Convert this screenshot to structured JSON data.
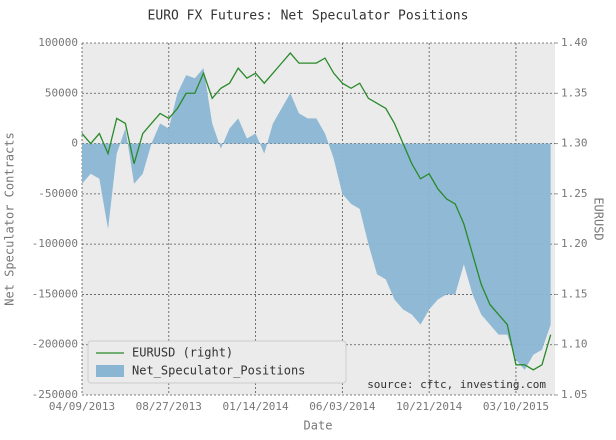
{
  "chart_data": {
    "type": "area-line",
    "title": "EURO FX Futures: Net Speculator Positions",
    "x_label": "Date",
    "y_label": "Net Speculator Contracts",
    "y2_label": "EURUSD",
    "annotation": "source: cftc, investing.com",
    "x": [
      "04/09/2013",
      "04/23/2013",
      "05/07/2013",
      "05/21/2013",
      "06/04/2013",
      "06/18/2013",
      "07/02/2013",
      "07/16/2013",
      "07/30/2013",
      "08/13/2013",
      "08/27/2013",
      "09/10/2013",
      "09/24/2013",
      "10/08/2013",
      "10/22/2013",
      "11/05/2013",
      "11/19/2013",
      "12/03/2013",
      "12/17/2013",
      "12/31/2013",
      "01/14/2014",
      "01/28/2014",
      "02/11/2014",
      "02/25/2014",
      "03/11/2014",
      "03/25/2014",
      "04/08/2014",
      "04/22/2014",
      "05/06/2014",
      "05/20/2014",
      "06/03/2014",
      "06/17/2014",
      "07/01/2014",
      "07/15/2014",
      "07/29/2014",
      "08/12/2014",
      "08/26/2014",
      "09/09/2014",
      "09/23/2014",
      "10/07/2014",
      "10/21/2014",
      "11/04/2014",
      "11/18/2014",
      "12/02/2014",
      "12/16/2014",
      "12/30/2014",
      "01/13/2015",
      "01/27/2015",
      "02/10/2015",
      "02/24/2015",
      "03/10/2015",
      "03/24/2015",
      "04/07/2015",
      "04/21/2015",
      "05/05/2015"
    ],
    "series": [
      {
        "name": "EURUSD (right)",
        "kind": "line",
        "axis": "y2",
        "color": "#2a8a2a",
        "values": [
          1.31,
          1.3,
          1.31,
          1.29,
          1.325,
          1.32,
          1.28,
          1.31,
          1.32,
          1.33,
          1.325,
          1.335,
          1.35,
          1.35,
          1.37,
          1.345,
          1.355,
          1.36,
          1.375,
          1.365,
          1.37,
          1.36,
          1.37,
          1.38,
          1.39,
          1.38,
          1.38,
          1.38,
          1.385,
          1.37,
          1.36,
          1.355,
          1.36,
          1.345,
          1.34,
          1.335,
          1.32,
          1.3,
          1.28,
          1.265,
          1.27,
          1.255,
          1.245,
          1.24,
          1.22,
          1.19,
          1.16,
          1.14,
          1.13,
          1.12,
          1.08,
          1.08,
          1.075,
          1.08,
          1.11
        ]
      },
      {
        "name": "Net_Speculator_Positions",
        "kind": "area",
        "color": "#8ab6d3",
        "values": [
          -40000,
          -30000,
          -35000,
          -85000,
          -10000,
          15000,
          -40000,
          -30000,
          0,
          20000,
          15000,
          50000,
          68000,
          65000,
          75000,
          20000,
          -5000,
          15000,
          25000,
          5000,
          10000,
          -10000,
          20000,
          35000,
          50000,
          30000,
          25000,
          25000,
          10000,
          -15000,
          -50000,
          -60000,
          -65000,
          -100000,
          -130000,
          -135000,
          -155000,
          -165000,
          -170000,
          -180000,
          -165000,
          -155000,
          -150000,
          -150000,
          -120000,
          -150000,
          -170000,
          -180000,
          -190000,
          -190000,
          -215000,
          -225000,
          -210000,
          -205000,
          -180000
        ]
      }
    ],
    "xlim": [
      "04/09/2013",
      "05/12/2015"
    ],
    "xticks": [
      "04/09/2013",
      "08/27/2013",
      "01/14/2014",
      "06/03/2014",
      "10/21/2014",
      "03/10/2015"
    ],
    "ylim": [
      -250000,
      100000
    ],
    "yticks": [
      100000,
      50000,
      0,
      -50000,
      -100000,
      -150000,
      -200000,
      -250000
    ],
    "y2lim": [
      1.05,
      1.4
    ],
    "y2ticks": [
      {
        "value": 1.4,
        "label": "1.40"
      },
      1.35,
      {
        "value": 1.3,
        "label": "1.30"
      },
      1.25,
      {
        "value": 1.2,
        "label": "1.20"
      },
      1.15,
      {
        "value": 1.1,
        "label": "1.10"
      },
      1.05
    ],
    "grid": true,
    "legend": "lower left"
  }
}
